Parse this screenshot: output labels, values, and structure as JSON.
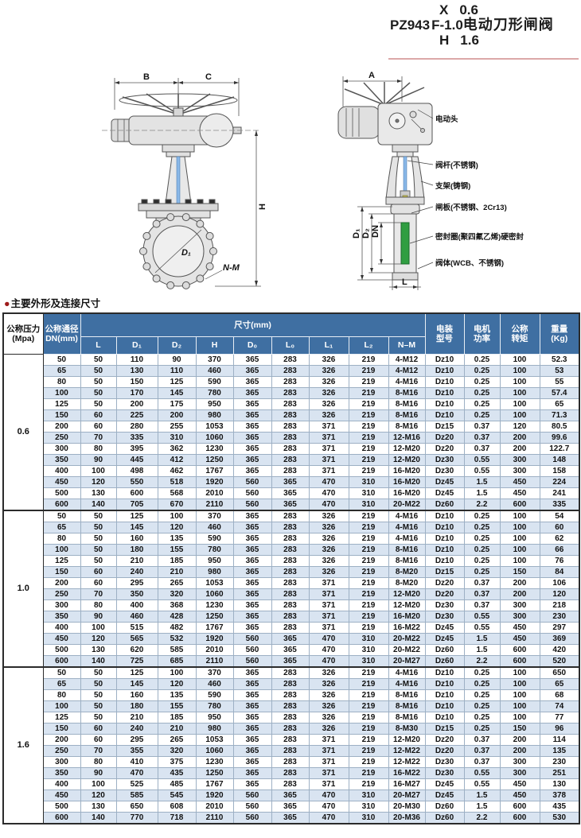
{
  "model_title": {
    "prefix": "PZ943",
    "top_code": "X",
    "top_val": "0.6",
    "mid_code": "F-",
    "mid_val": "1.0",
    "bottom_code": "H",
    "bottom_val": "1.6",
    "suffix": "电动刀形闸阀"
  },
  "drawings": {
    "front": {
      "dim_b": "B",
      "dim_c": "C",
      "dim_h": "H",
      "d1": "D₁",
      "nm": "N-M"
    },
    "side": {
      "dim_a": "A",
      "dim_l": "L",
      "left_dims": [
        "D₁",
        "D₂",
        "DN"
      ],
      "labels": [
        "电动头",
        "阀杆(不锈钢)",
        "支架(铸钢)",
        "闸板(不锈钢、2Cr13)",
        "密封圈(聚四氟乙烯)硬密封",
        "阀体(WCB、不锈钢)"
      ]
    }
  },
  "table": {
    "bullet": "●",
    "section_title": "主要外形及连接尺寸",
    "header": {
      "pressure": "公称压力\n(Mpa)",
      "dn": "公称通径\nDN(mm)",
      "size_group": "尺寸(mm)",
      "size_cols": [
        "L",
        "D₁",
        "D₂",
        "H",
        "D₀",
        "L₀",
        "L₁",
        "L₂",
        "N–M"
      ],
      "motor_model": "电装\n型号",
      "motor_power": "电机\n功率",
      "torque": "公称\n转矩",
      "weight": "重量\n(Kg)"
    },
    "sections": [
      {
        "pressure": "0.6",
        "rows": [
          [
            "50",
            "50",
            "110",
            "90",
            "370",
            "365",
            "283",
            "326",
            "219",
            "4-M12",
            "Dz10",
            "0.25",
            "100",
            "52.3"
          ],
          [
            "65",
            "50",
            "130",
            "110",
            "460",
            "365",
            "283",
            "326",
            "219",
            "4-M12",
            "Dz10",
            "0.25",
            "100",
            "53"
          ],
          [
            "80",
            "50",
            "150",
            "125",
            "590",
            "365",
            "283",
            "326",
            "219",
            "4-M16",
            "Dz10",
            "0.25",
            "100",
            "55"
          ],
          [
            "100",
            "50",
            "170",
            "145",
            "780",
            "365",
            "283",
            "326",
            "219",
            "8-M16",
            "Dz10",
            "0.25",
            "100",
            "57.4"
          ],
          [
            "125",
            "50",
            "200",
            "175",
            "950",
            "365",
            "283",
            "326",
            "219",
            "8-M16",
            "Dz10",
            "0.25",
            "100",
            "65"
          ],
          [
            "150",
            "60",
            "225",
            "200",
            "980",
            "365",
            "283",
            "326",
            "219",
            "8-M16",
            "Dz10",
            "0.25",
            "100",
            "71.3"
          ],
          [
            "200",
            "60",
            "280",
            "255",
            "1053",
            "365",
            "283",
            "371",
            "219",
            "8-M16",
            "Dz15",
            "0.37",
            "120",
            "80.5"
          ],
          [
            "250",
            "70",
            "335",
            "310",
            "1060",
            "365",
            "283",
            "371",
            "219",
            "12-M16",
            "Dz20",
            "0.37",
            "200",
            "99.6"
          ],
          [
            "300",
            "80",
            "395",
            "362",
            "1230",
            "365",
            "283",
            "371",
            "219",
            "12-M20",
            "Dz20",
            "0.37",
            "200",
            "122.7"
          ],
          [
            "350",
            "90",
            "445",
            "412",
            "1250",
            "365",
            "283",
            "371",
            "219",
            "12-M20",
            "Dz30",
            "0.55",
            "300",
            "148"
          ],
          [
            "400",
            "100",
            "498",
            "462",
            "1767",
            "365",
            "283",
            "371",
            "219",
            "16-M20",
            "Dz30",
            "0.55",
            "300",
            "158"
          ],
          [
            "450",
            "120",
            "550",
            "518",
            "1920",
            "560",
            "365",
            "470",
            "310",
            "16-M20",
            "Dz45",
            "1.5",
            "450",
            "224"
          ],
          [
            "500",
            "130",
            "600",
            "568",
            "2010",
            "560",
            "365",
            "470",
            "310",
            "16-M20",
            "Dz45",
            "1.5",
            "450",
            "241"
          ],
          [
            "600",
            "140",
            "705",
            "670",
            "2110",
            "560",
            "365",
            "470",
            "310",
            "20-M22",
            "Dz60",
            "2.2",
            "600",
            "335"
          ]
        ]
      },
      {
        "pressure": "1.0",
        "rows": [
          [
            "50",
            "50",
            "125",
            "100",
            "370",
            "365",
            "283",
            "326",
            "219",
            "4-M16",
            "Dz10",
            "0.25",
            "100",
            "54"
          ],
          [
            "65",
            "50",
            "145",
            "120",
            "460",
            "365",
            "283",
            "326",
            "219",
            "4-M16",
            "Dz10",
            "0.25",
            "100",
            "60"
          ],
          [
            "80",
            "50",
            "160",
            "135",
            "590",
            "365",
            "283",
            "326",
            "219",
            "4-M16",
            "Dz10",
            "0.25",
            "100",
            "62"
          ],
          [
            "100",
            "50",
            "180",
            "155",
            "780",
            "365",
            "283",
            "326",
            "219",
            "8-M16",
            "Dz10",
            "0.25",
            "100",
            "66"
          ],
          [
            "125",
            "50",
            "210",
            "185",
            "950",
            "365",
            "283",
            "326",
            "219",
            "8-M16",
            "Dz10",
            "0.25",
            "100",
            "76"
          ],
          [
            "150",
            "60",
            "240",
            "210",
            "980",
            "365",
            "283",
            "326",
            "219",
            "8-M20",
            "Dz15",
            "0.25",
            "150",
            "84"
          ],
          [
            "200",
            "60",
            "295",
            "265",
            "1053",
            "365",
            "283",
            "371",
            "219",
            "8-M20",
            "Dz20",
            "0.37",
            "200",
            "106"
          ],
          [
            "250",
            "70",
            "350",
            "320",
            "1060",
            "365",
            "283",
            "371",
            "219",
            "12-M20",
            "Dz20",
            "0.37",
            "200",
            "120"
          ],
          [
            "300",
            "80",
            "400",
            "368",
            "1230",
            "365",
            "283",
            "371",
            "219",
            "12-M20",
            "Dz30",
            "0.37",
            "300",
            "218"
          ],
          [
            "350",
            "90",
            "460",
            "428",
            "1250",
            "365",
            "283",
            "371",
            "219",
            "16-M20",
            "Dz30",
            "0.55",
            "300",
            "230"
          ],
          [
            "400",
            "100",
            "515",
            "482",
            "1767",
            "365",
            "283",
            "371",
            "219",
            "16-M22",
            "Dz45",
            "0.55",
            "450",
            "297"
          ],
          [
            "450",
            "120",
            "565",
            "532",
            "1920",
            "560",
            "365",
            "470",
            "310",
            "20-M22",
            "Dz45",
            "1.5",
            "450",
            "369"
          ],
          [
            "500",
            "130",
            "620",
            "585",
            "2010",
            "560",
            "365",
            "470",
            "310",
            "20-M22",
            "Dz60",
            "1.5",
            "600",
            "420"
          ],
          [
            "600",
            "140",
            "725",
            "685",
            "2110",
            "560",
            "365",
            "470",
            "310",
            "20-M27",
            "Dz60",
            "2.2",
            "600",
            "520"
          ]
        ]
      },
      {
        "pressure": "1.6",
        "rows": [
          [
            "50",
            "50",
            "125",
            "100",
            "370",
            "365",
            "283",
            "326",
            "219",
            "4-M16",
            "Dz10",
            "0.25",
            "100",
            "650"
          ],
          [
            "65",
            "50",
            "145",
            "120",
            "460",
            "365",
            "283",
            "326",
            "219",
            "4-M16",
            "Dz10",
            "0.25",
            "100",
            "65"
          ],
          [
            "80",
            "50",
            "160",
            "135",
            "590",
            "365",
            "283",
            "326",
            "219",
            "8-M16",
            "Dz10",
            "0.25",
            "100",
            "68"
          ],
          [
            "100",
            "50",
            "180",
            "155",
            "780",
            "365",
            "283",
            "326",
            "219",
            "8-M16",
            "Dz10",
            "0.25",
            "100",
            "74"
          ],
          [
            "125",
            "50",
            "210",
            "185",
            "950",
            "365",
            "283",
            "326",
            "219",
            "8-M16",
            "Dz10",
            "0.25",
            "100",
            "77"
          ],
          [
            "150",
            "60",
            "240",
            "210",
            "980",
            "365",
            "283",
            "326",
            "219",
            "8-M30",
            "Dz15",
            "0.25",
            "150",
            "96"
          ],
          [
            "200",
            "60",
            "295",
            "265",
            "1053",
            "365",
            "283",
            "371",
            "219",
            "12-M20",
            "Dz20",
            "0.37",
            "200",
            "114"
          ],
          [
            "250",
            "70",
            "355",
            "320",
            "1060",
            "365",
            "283",
            "371",
            "219",
            "12-M22",
            "Dz20",
            "0.37",
            "200",
            "135"
          ],
          [
            "300",
            "80",
            "410",
            "375",
            "1230",
            "365",
            "283",
            "371",
            "219",
            "12-M22",
            "Dz30",
            "0.37",
            "300",
            "230"
          ],
          [
            "350",
            "90",
            "470",
            "435",
            "1250",
            "365",
            "283",
            "371",
            "219",
            "16-M22",
            "Dz30",
            "0.55",
            "300",
            "251"
          ],
          [
            "400",
            "100",
            "525",
            "485",
            "1767",
            "365",
            "283",
            "371",
            "219",
            "16-M27",
            "Dz45",
            "0.55",
            "450",
            "130"
          ],
          [
            "450",
            "120",
            "585",
            "545",
            "1920",
            "560",
            "365",
            "470",
            "310",
            "20-M27",
            "Dz45",
            "1.5",
            "450",
            "378"
          ],
          [
            "500",
            "130",
            "650",
            "608",
            "2010",
            "560",
            "365",
            "470",
            "310",
            "20-M30",
            "Dz60",
            "1.5",
            "600",
            "435"
          ],
          [
            "600",
            "140",
            "770",
            "718",
            "2110",
            "560",
            "365",
            "470",
            "310",
            "20-M36",
            "Dz60",
            "2.2",
            "600",
            "530"
          ]
        ]
      }
    ]
  },
  "colors": {
    "header_blue": "#3f6fa2",
    "row_alt_blue": "#d9e4f1",
    "underline_pink": "#dca8a8",
    "bullet_red": "#9e1b1b",
    "stem_blue": "#8ab8e8",
    "seal_green": "#2f9e41",
    "stem_yellow": "#d6c63d"
  }
}
